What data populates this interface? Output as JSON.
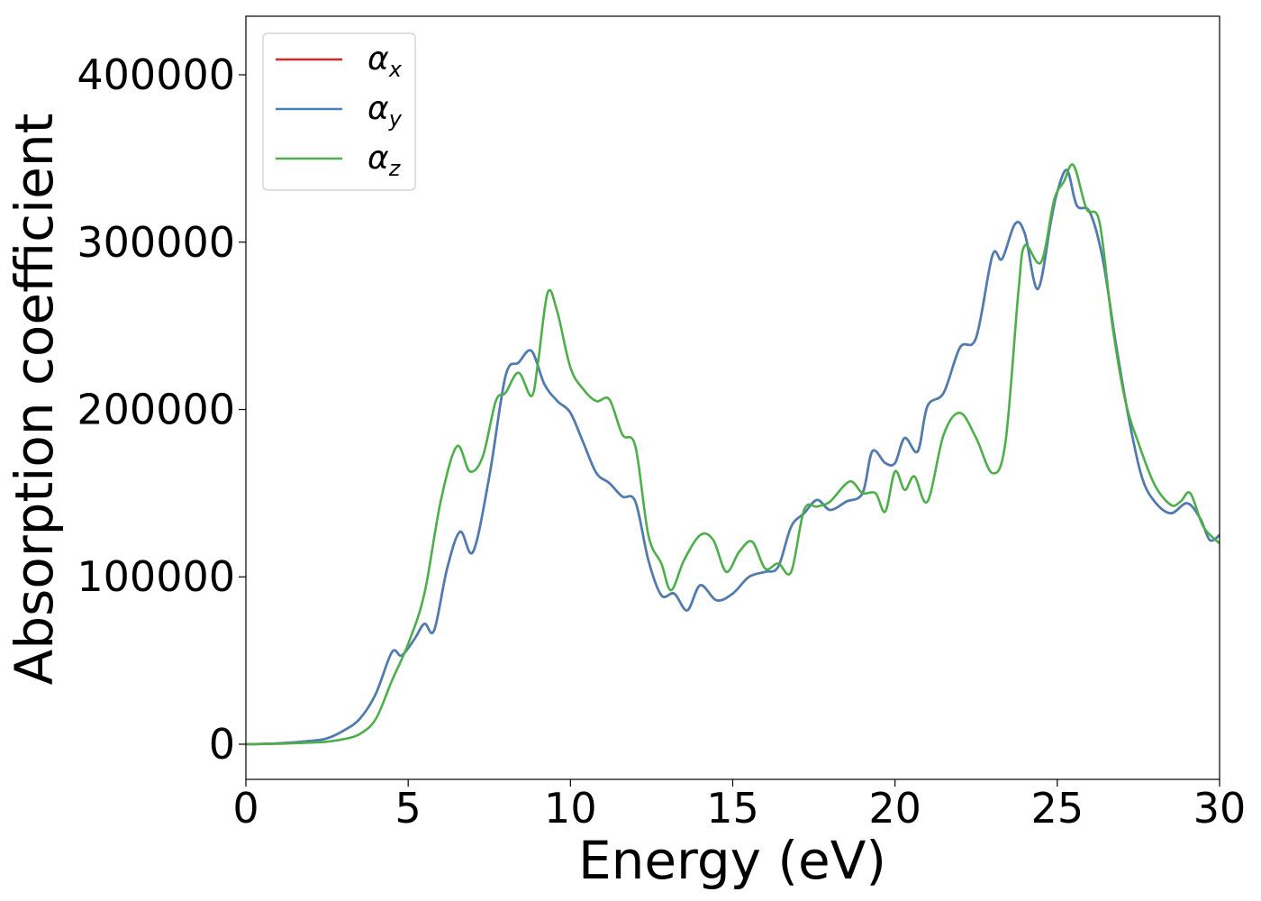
{
  "chart_data": {
    "type": "line",
    "xlabel": "Energy (eV)",
    "ylabel": "Absorption coefficient",
    "xlim": [
      0,
      30
    ],
    "ylim": [
      -21000,
      435000
    ],
    "xticks": [
      0,
      5,
      10,
      15,
      20,
      25,
      30
    ],
    "xtick_labels": [
      "0",
      "5",
      "10",
      "15",
      "20",
      "25",
      "30"
    ],
    "yticks": [
      0,
      100000,
      200000,
      300000,
      400000
    ],
    "ytick_labels": [
      "0",
      "100000",
      "200000",
      "300000",
      "400000"
    ],
    "grid": false,
    "legend_placement": "top-left",
    "series": [
      {
        "name": "αx",
        "greek": "α",
        "subscript": "x",
        "color": "#d62728",
        "x": [
          0,
          1,
          2,
          2.5,
          3,
          3.5,
          4,
          4.5,
          4.8,
          5.2,
          5.5,
          5.8,
          6.2,
          6.6,
          7.0,
          7.5,
          8.0,
          8.4,
          8.8,
          9.2,
          9.6,
          10.0,
          10.4,
          10.8,
          11.2,
          11.6,
          12.0,
          12.4,
          12.8,
          13.2,
          13.6,
          14.0,
          14.5,
          15.0,
          15.5,
          16.0,
          16.4,
          16.8,
          17.2,
          17.6,
          18.0,
          18.5,
          19.0,
          19.3,
          19.7,
          20.0,
          20.3,
          20.7,
          21.0,
          21.5,
          22.0,
          22.5,
          23.0,
          23.3,
          23.7,
          24.0,
          24.4,
          24.8,
          25.0,
          25.3,
          25.6,
          26.0,
          26.4,
          26.8,
          27.2,
          27.6,
          28.0,
          28.5,
          29.0,
          29.4,
          29.7,
          30.0
        ],
        "y": [
          0,
          500,
          2000,
          3500,
          8000,
          15000,
          30000,
          55000,
          53000,
          63000,
          72000,
          68000,
          105000,
          127000,
          115000,
          160000,
          220000,
          228000,
          235000,
          215000,
          205000,
          198000,
          180000,
          162000,
          156000,
          148000,
          145000,
          110000,
          89000,
          90000,
          80000,
          95000,
          86000,
          90000,
          100000,
          103000,
          106000,
          130000,
          138000,
          146000,
          140000,
          145000,
          150000,
          175000,
          168000,
          168000,
          183000,
          175000,
          202000,
          210000,
          237000,
          243000,
          292000,
          290000,
          311000,
          305000,
          272000,
          312000,
          330000,
          343000,
          322000,
          318000,
          290000,
          240000,
          195000,
          160000,
          145000,
          138000,
          144000,
          135000,
          122000,
          125000
        ]
      },
      {
        "name": "αy",
        "greek": "α",
        "subscript": "y",
        "color": "#4a7fb5",
        "x": [
          0,
          1,
          2,
          2.5,
          3,
          3.5,
          4,
          4.5,
          4.8,
          5.2,
          5.5,
          5.8,
          6.2,
          6.6,
          7.0,
          7.5,
          8.0,
          8.4,
          8.8,
          9.2,
          9.6,
          10.0,
          10.4,
          10.8,
          11.2,
          11.6,
          12.0,
          12.4,
          12.8,
          13.2,
          13.6,
          14.0,
          14.5,
          15.0,
          15.5,
          16.0,
          16.4,
          16.8,
          17.2,
          17.6,
          18.0,
          18.5,
          19.0,
          19.3,
          19.7,
          20.0,
          20.3,
          20.7,
          21.0,
          21.5,
          22.0,
          22.5,
          23.0,
          23.3,
          23.7,
          24.0,
          24.4,
          24.8,
          25.0,
          25.3,
          25.6,
          26.0,
          26.4,
          26.8,
          27.2,
          27.6,
          28.0,
          28.5,
          29.0,
          29.4,
          29.7,
          30.0
        ],
        "y": [
          0,
          500,
          2000,
          3500,
          8000,
          15000,
          30000,
          55000,
          53000,
          63000,
          72000,
          68000,
          105000,
          127000,
          115000,
          160000,
          220000,
          228000,
          235000,
          215000,
          205000,
          198000,
          180000,
          162000,
          156000,
          148000,
          145000,
          110000,
          89000,
          90000,
          80000,
          95000,
          86000,
          90000,
          100000,
          103000,
          106000,
          130000,
          138000,
          146000,
          140000,
          145000,
          150000,
          175000,
          168000,
          168000,
          183000,
          175000,
          202000,
          210000,
          237000,
          243000,
          292000,
          290000,
          311000,
          305000,
          272000,
          312000,
          330000,
          343000,
          322000,
          318000,
          290000,
          240000,
          195000,
          160000,
          145000,
          138000,
          144000,
          135000,
          122000,
          125000
        ]
      },
      {
        "name": "αz",
        "greek": "α",
        "subscript": "z",
        "color": "#4daf4a",
        "x": [
          0,
          1,
          2,
          2.5,
          3,
          3.5,
          4,
          4.5,
          5.0,
          5.5,
          6.0,
          6.5,
          6.9,
          7.3,
          7.7,
          8.0,
          8.4,
          8.8,
          9.0,
          9.3,
          9.6,
          10.0,
          10.4,
          10.8,
          11.2,
          11.6,
          12.0,
          12.4,
          12.8,
          13.1,
          13.5,
          14.0,
          14.4,
          14.8,
          15.2,
          15.6,
          16.0,
          16.4,
          16.8,
          17.2,
          17.6,
          18.0,
          18.6,
          19.0,
          19.4,
          19.7,
          20.0,
          20.3,
          20.6,
          21.0,
          21.5,
          22.0,
          22.5,
          23.0,
          23.4,
          23.8,
          24.0,
          24.5,
          24.9,
          25.2,
          25.5,
          25.9,
          26.3,
          26.7,
          27.1,
          27.5,
          28.0,
          28.5,
          28.8,
          29.1,
          29.5,
          30.0
        ],
        "y": [
          0,
          300,
          1000,
          1500,
          3000,
          6000,
          15000,
          38000,
          60000,
          90000,
          145000,
          178000,
          163000,
          172000,
          205000,
          210000,
          222000,
          208000,
          228000,
          270000,
          258000,
          225000,
          212000,
          205000,
          206000,
          185000,
          178000,
          125000,
          108000,
          92000,
          110000,
          125000,
          122000,
          103000,
          115000,
          121000,
          105000,
          108000,
          103000,
          140000,
          142000,
          145000,
          157000,
          150000,
          150000,
          139000,
          163000,
          152000,
          160000,
          145000,
          185000,
          198000,
          183000,
          162000,
          180000,
          270000,
          298000,
          288000,
          325000,
          336000,
          346000,
          320000,
          312000,
          250000,
          205000,
          180000,
          155000,
          143000,
          145000,
          150000,
          130000,
          120000
        ]
      }
    ]
  }
}
